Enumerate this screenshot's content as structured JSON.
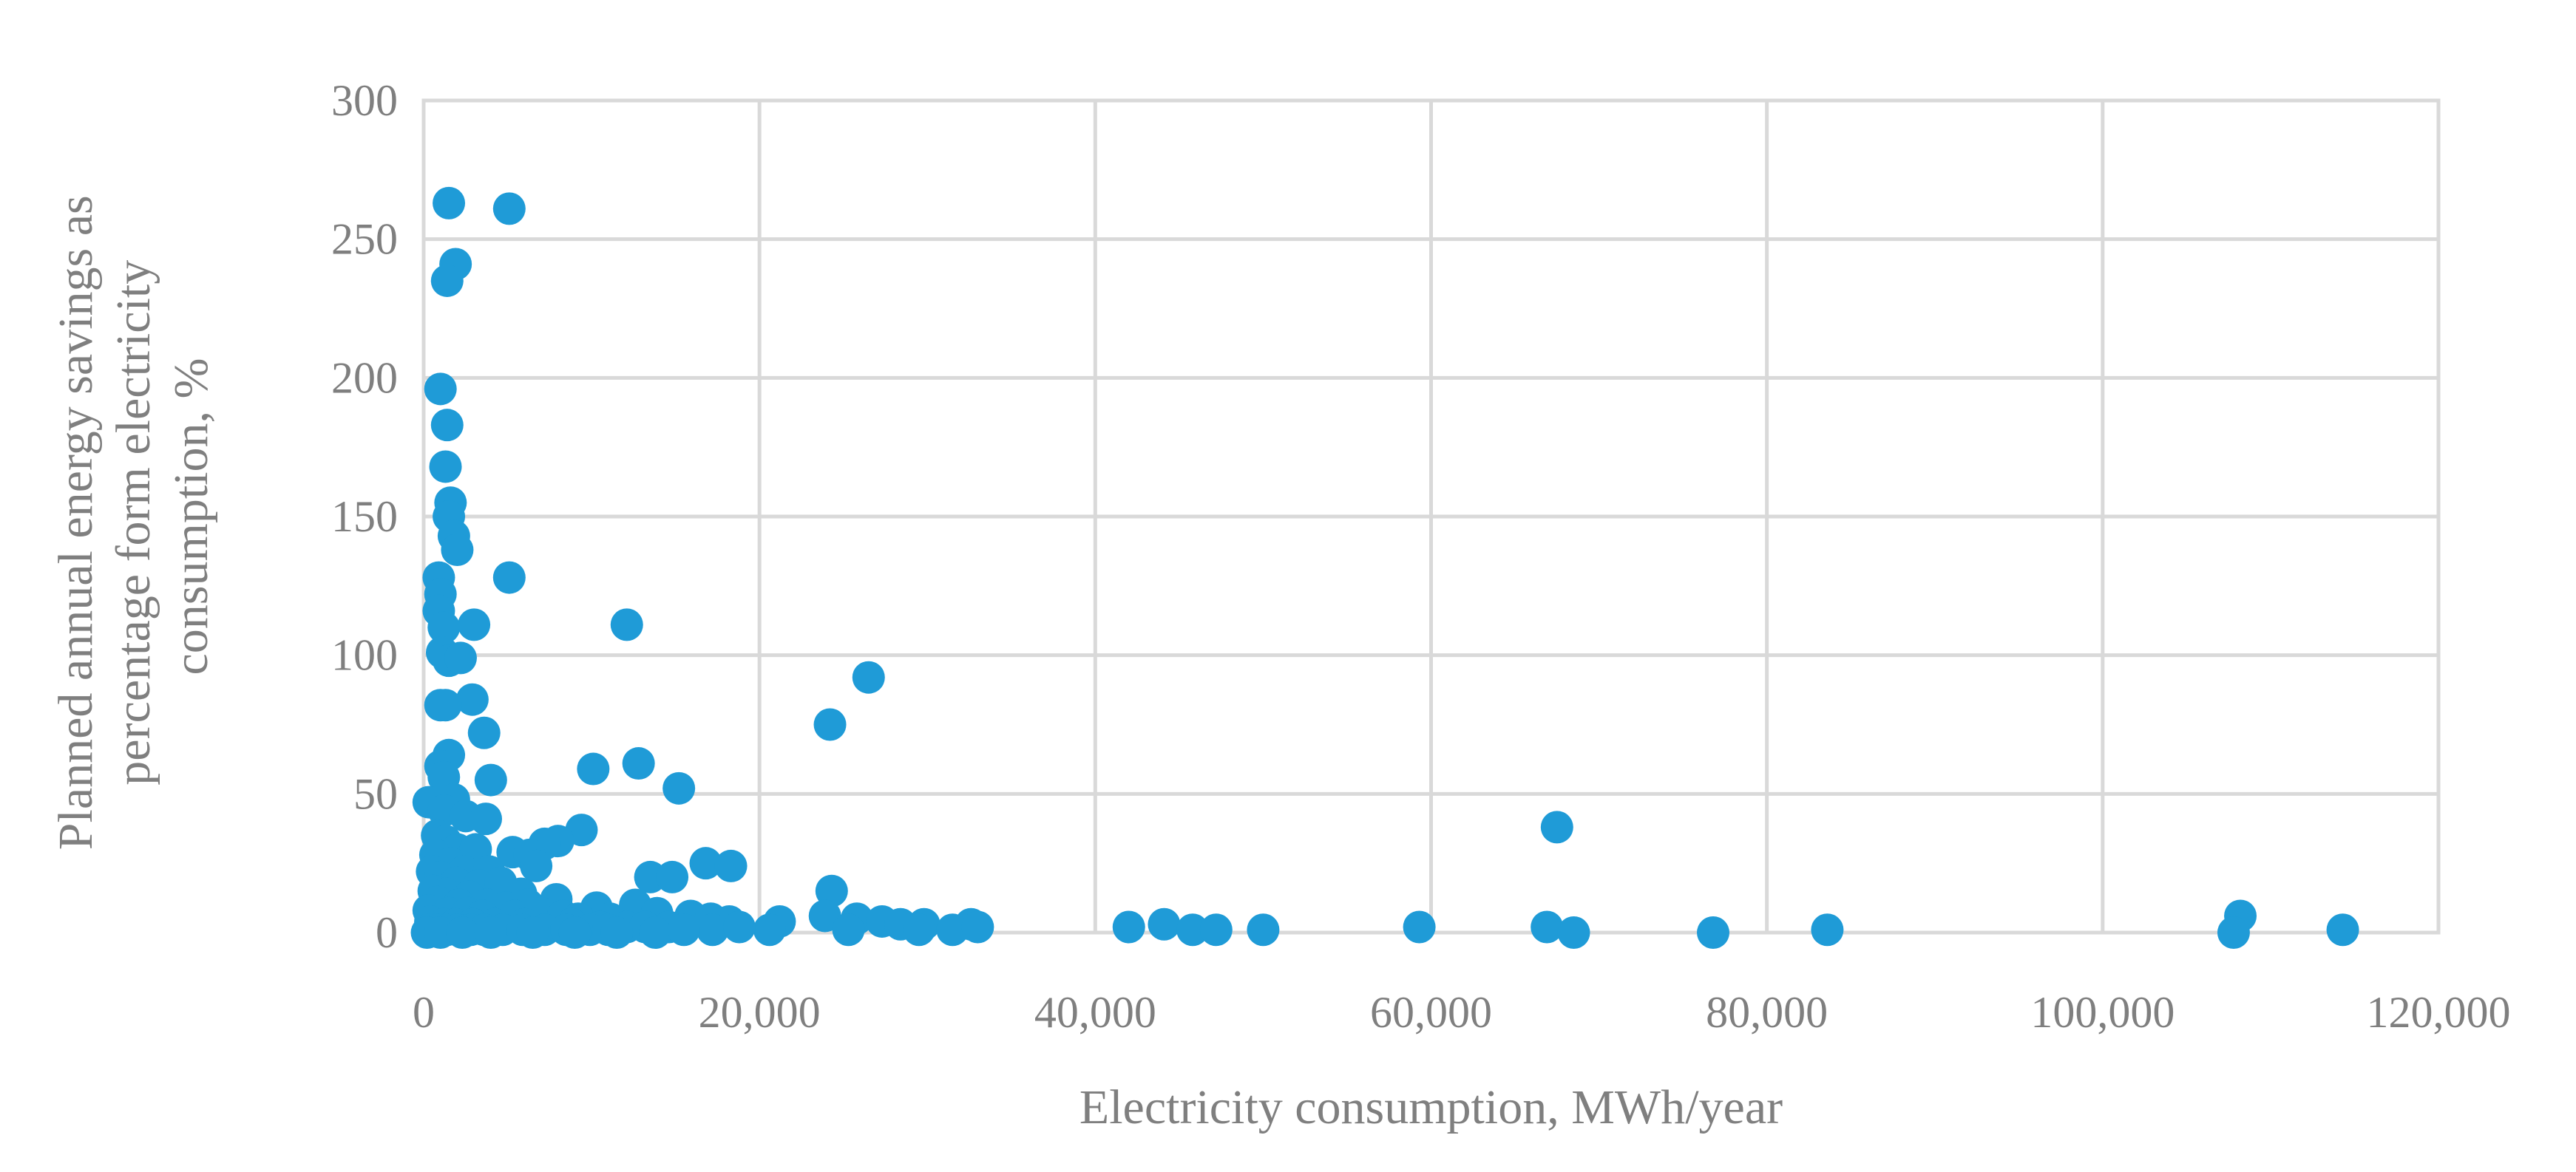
{
  "chart_data": {
    "type": "scatter",
    "xlabel": "Electricity consumption, MWh/year",
    "ylabel_lines": [
      "Planned annual energy savings as",
      "percentage form electricity",
      "consumption, %"
    ],
    "xlim": [
      0,
      120000
    ],
    "ylim": [
      0,
      300
    ],
    "x_ticks": [
      0,
      20000,
      40000,
      60000,
      80000,
      100000,
      120000
    ],
    "x_tick_labels": [
      "0",
      "20,000",
      "40,000",
      "60,000",
      "80,000",
      "100,000",
      "120,000"
    ],
    "y_ticks": [
      0,
      50,
      100,
      150,
      200,
      250,
      300
    ],
    "y_tick_labels": [
      "0",
      "50",
      "100",
      "150",
      "200",
      "250",
      "300"
    ],
    "grid": true,
    "legend": "none",
    "marker_color": "#1f9bd7",
    "points": [
      [
        1500,
        263
      ],
      [
        5100,
        261
      ],
      [
        1900,
        241
      ],
      [
        1400,
        235
      ],
      [
        1000,
        196
      ],
      [
        1400,
        183
      ],
      [
        1300,
        168
      ],
      [
        1600,
        155
      ],
      [
        1500,
        150
      ],
      [
        1800,
        143
      ],
      [
        2000,
        138
      ],
      [
        5100,
        128
      ],
      [
        900,
        128
      ],
      [
        1000,
        122
      ],
      [
        900,
        116
      ],
      [
        1200,
        110
      ],
      [
        3000,
        111
      ],
      [
        12100,
        111
      ],
      [
        1100,
        101
      ],
      [
        1500,
        98
      ],
      [
        2200,
        99
      ],
      [
        26500,
        92
      ],
      [
        2900,
        84
      ],
      [
        1000,
        82
      ],
      [
        1300,
        82
      ],
      [
        3600,
        72
      ],
      [
        24200,
        75
      ],
      [
        1500,
        64
      ],
      [
        1000,
        60
      ],
      [
        12800,
        61
      ],
      [
        10100,
        59
      ],
      [
        1200,
        56
      ],
      [
        4000,
        55
      ],
      [
        15200,
        52
      ],
      [
        1800,
        48
      ],
      [
        300,
        47
      ],
      [
        1200,
        44
      ],
      [
        2500,
        42
      ],
      [
        3700,
        41
      ],
      [
        67500,
        38
      ],
      [
        9400,
        37
      ],
      [
        800,
        35
      ],
      [
        1300,
        33
      ],
      [
        2000,
        30
      ],
      [
        3100,
        30
      ],
      [
        5300,
        29
      ],
      [
        8000,
        33
      ],
      [
        7200,
        32
      ],
      [
        6300,
        28
      ],
      [
        700,
        28
      ],
      [
        1600,
        25
      ],
      [
        2400,
        22
      ],
      [
        3900,
        22
      ],
      [
        16800,
        25
      ],
      [
        18300,
        24
      ],
      [
        6700,
        24
      ],
      [
        500,
        22
      ],
      [
        1000,
        20
      ],
      [
        13500,
        20
      ],
      [
        14800,
        20
      ],
      [
        1900,
        18
      ],
      [
        3300,
        17
      ],
      [
        4600,
        18
      ],
      [
        600,
        15
      ],
      [
        1300,
        14
      ],
      [
        2700,
        13
      ],
      [
        5800,
        14
      ],
      [
        7900,
        12
      ],
      [
        24300,
        15
      ],
      [
        800,
        11
      ],
      [
        2100,
        10
      ],
      [
        3800,
        10
      ],
      [
        4900,
        9
      ],
      [
        6200,
        10
      ],
      [
        12600,
        10
      ],
      [
        10300,
        9
      ],
      [
        300,
        8
      ],
      [
        1500,
        7
      ],
      [
        2600,
        7
      ],
      [
        3500,
        6
      ],
      [
        5400,
        6
      ],
      [
        7000,
        7
      ],
      [
        8300,
        6
      ],
      [
        9200,
        5
      ],
      [
        11100,
        5
      ],
      [
        13900,
        7
      ],
      [
        15900,
        6
      ],
      [
        17100,
        5
      ],
      [
        18200,
        4
      ],
      [
        21200,
        4
      ],
      [
        23900,
        6
      ],
      [
        25800,
        5
      ],
      [
        27300,
        4
      ],
      [
        28400,
        3
      ],
      [
        29800,
        3
      ],
      [
        32600,
        3
      ],
      [
        44100,
        3
      ],
      [
        108200,
        6
      ],
      [
        400,
        4
      ],
      [
        1200,
        3
      ],
      [
        1900,
        3
      ],
      [
        2900,
        3
      ],
      [
        4200,
        3
      ],
      [
        6000,
        3
      ],
      [
        8800,
        3
      ],
      [
        10500,
        2
      ],
      [
        12100,
        2
      ],
      [
        13200,
        2
      ],
      [
        14600,
        2
      ],
      [
        17200,
        1
      ],
      [
        20600,
        1
      ],
      [
        25300,
        1
      ],
      [
        29500,
        1
      ],
      [
        31500,
        1
      ],
      [
        33000,
        2
      ],
      [
        42000,
        2
      ],
      [
        45800,
        1
      ],
      [
        47200,
        1
      ],
      [
        50000,
        1
      ],
      [
        59300,
        2
      ],
      [
        66900,
        2
      ],
      [
        68500,
        0
      ],
      [
        76800,
        0
      ],
      [
        83600,
        1
      ],
      [
        107800,
        0
      ],
      [
        114300,
        1
      ],
      [
        300,
        1
      ],
      [
        800,
        1
      ],
      [
        1400,
        1
      ],
      [
        2000,
        1
      ],
      [
        2800,
        1
      ],
      [
        3600,
        1
      ],
      [
        4700,
        1
      ],
      [
        5900,
        1
      ],
      [
        7200,
        1
      ],
      [
        8500,
        1
      ],
      [
        9900,
        1
      ],
      [
        11000,
        1
      ],
      [
        13800,
        0
      ],
      [
        15500,
        1
      ],
      [
        200,
        0
      ],
      [
        1000,
        0
      ],
      [
        2300,
        0
      ],
      [
        4000,
        0
      ],
      [
        6500,
        0
      ],
      [
        9000,
        0
      ],
      [
        11500,
        0
      ],
      [
        18800,
        2
      ]
    ]
  }
}
